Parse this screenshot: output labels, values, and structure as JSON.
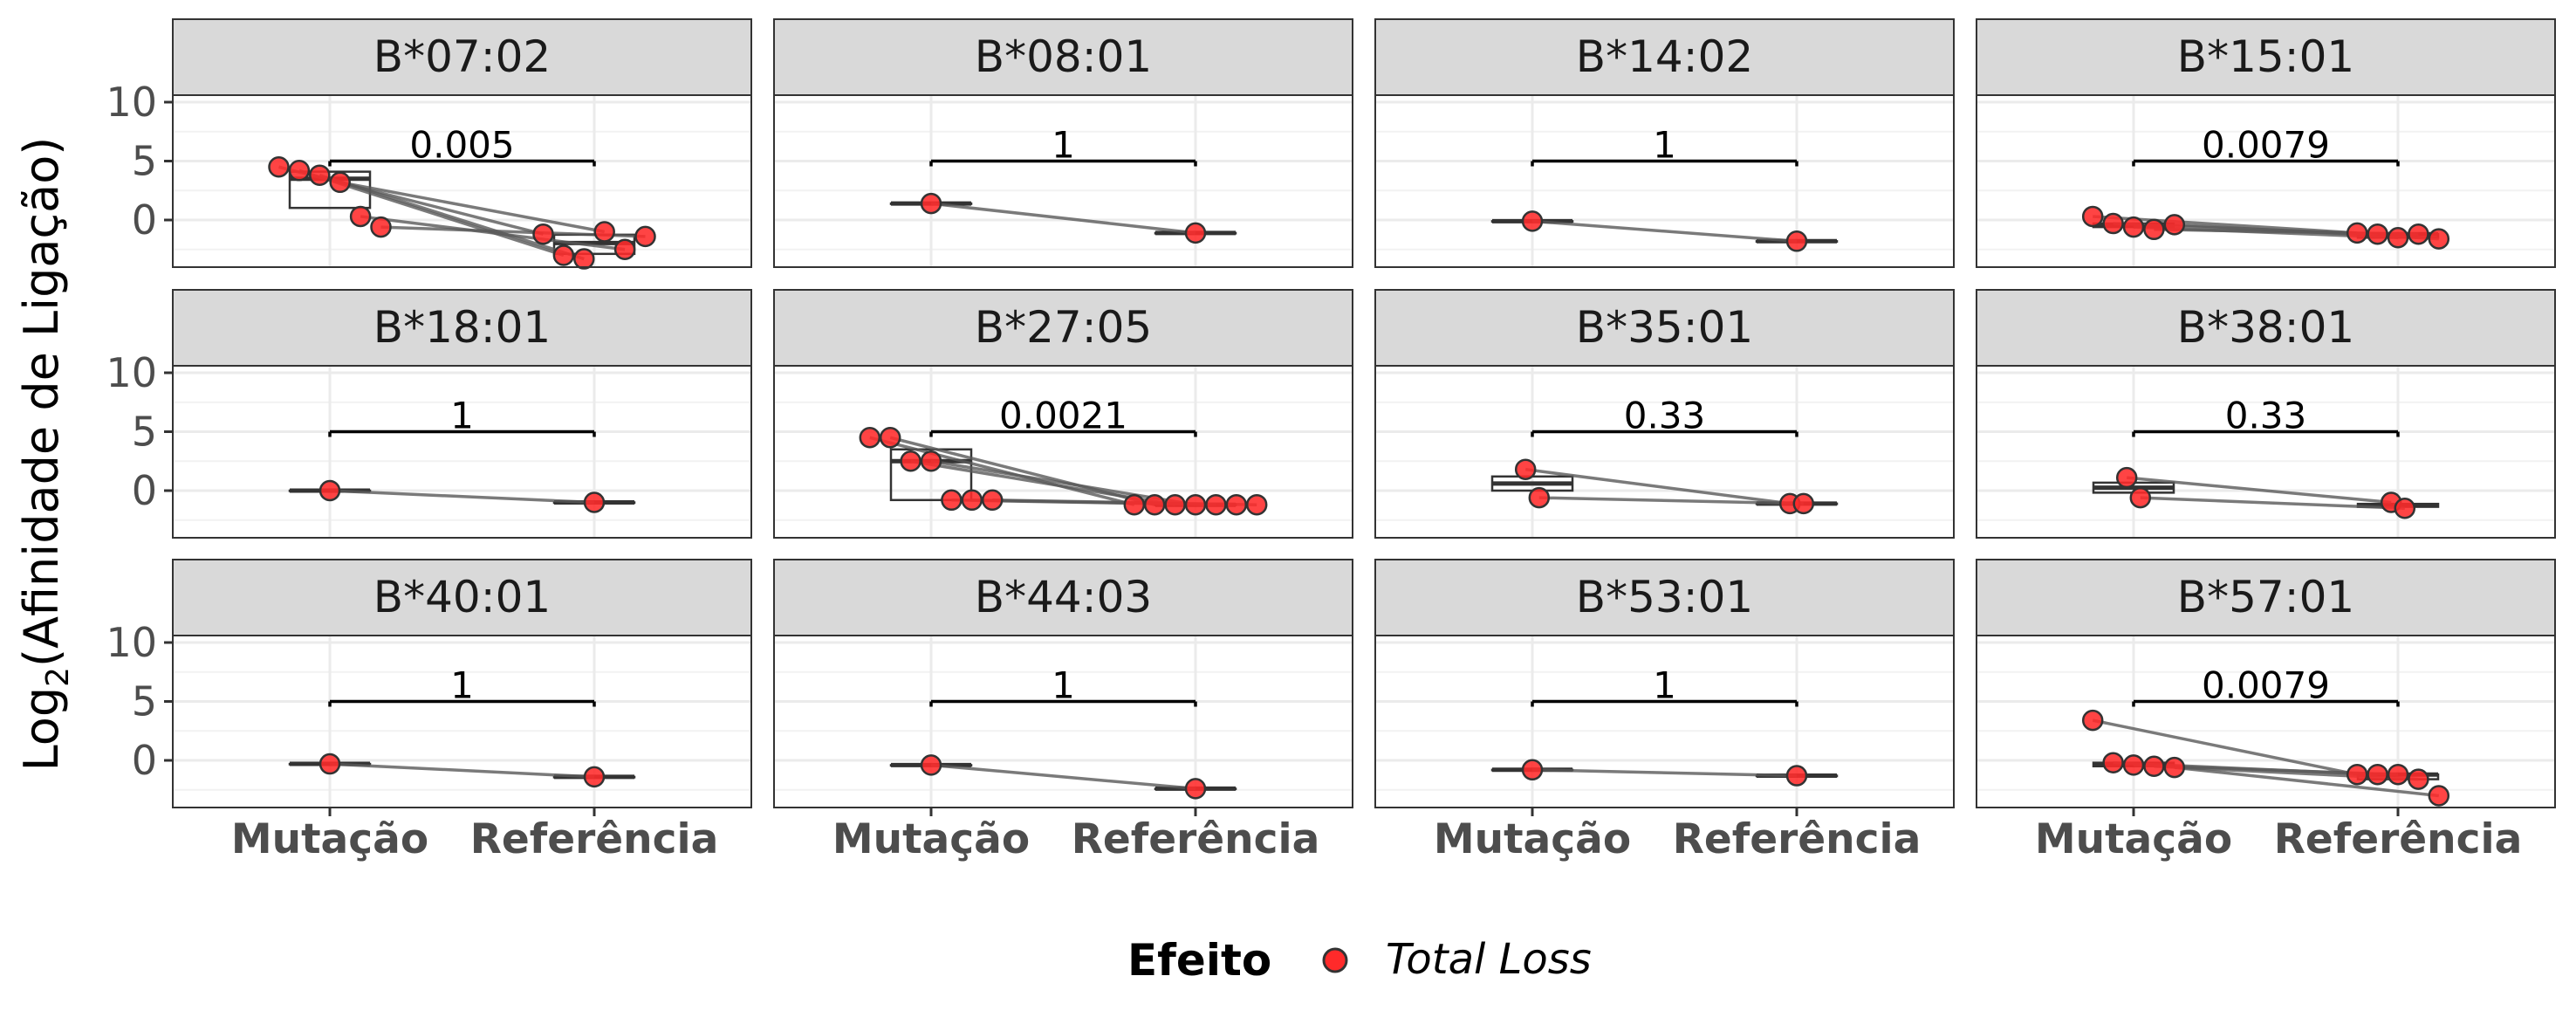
{
  "chart_data": {
    "type": "box-paired-points-facets",
    "ylabel_main": "Log",
    "ylabel_sub": "2",
    "ylabel_rest": "(Afinidade de Ligação)",
    "categories": [
      "Mutação",
      "Referência"
    ],
    "ylim": [
      -4,
      14
    ],
    "yticks": [
      0,
      5,
      10
    ],
    "legend": {
      "title": "Efeito",
      "label": "Total Loss",
      "color": "#ff2020"
    },
    "colors": {
      "point": "#ff2a2a",
      "line": "#595959",
      "strip": "#d9d9d9",
      "bracket": "#000000"
    },
    "grid": true,
    "facets": [
      {
        "name": "B*07:02",
        "p": "0.005",
        "pairs": [
          [
            4.5,
            -1.2
          ],
          [
            4.2,
            -3.0
          ],
          [
            3.8,
            -3.3
          ],
          [
            3.2,
            -1.0
          ],
          [
            0.3,
            -2.5
          ],
          [
            -0.6,
            -1.4
          ]
        ]
      },
      {
        "name": "B*08:01",
        "p": "1",
        "pairs": [
          [
            1.4,
            -1.1
          ]
        ]
      },
      {
        "name": "B*14:02",
        "p": "1",
        "pairs": [
          [
            -0.1,
            -1.8
          ]
        ]
      },
      {
        "name": "B*15:01",
        "p": "0.0079",
        "pairs": [
          [
            0.3,
            -1.1
          ],
          [
            -0.3,
            -1.2
          ],
          [
            -0.6,
            -1.5
          ],
          [
            -0.8,
            -1.2
          ],
          [
            -0.4,
            -1.6
          ]
        ]
      },
      {
        "name": "B*18:01",
        "p": "1",
        "pairs": [
          [
            0.0,
            -1.0
          ]
        ]
      },
      {
        "name": "B*27:05",
        "p": "0.0021",
        "pairs": [
          [
            4.5,
            -1.2
          ],
          [
            4.5,
            -1.2
          ],
          [
            2.5,
            -1.2
          ],
          [
            2.5,
            -1.2
          ],
          [
            -0.8,
            -1.2
          ],
          [
            -0.8,
            -1.2
          ],
          [
            -0.8,
            -1.2
          ]
        ]
      },
      {
        "name": "B*35:01",
        "p": "0.33",
        "pairs": [
          [
            1.8,
            -1.1
          ],
          [
            -0.6,
            -1.1
          ]
        ]
      },
      {
        "name": "B*38:01",
        "p": "0.33",
        "pairs": [
          [
            1.1,
            -1.0
          ],
          [
            -0.6,
            -1.5
          ]
        ]
      },
      {
        "name": "B*40:01",
        "p": "1",
        "pairs": [
          [
            -0.3,
            -1.4
          ]
        ]
      },
      {
        "name": "B*44:03",
        "p": "1",
        "pairs": [
          [
            -0.4,
            -2.4
          ]
        ]
      },
      {
        "name": "B*53:01",
        "p": "1",
        "pairs": [
          [
            -0.8,
            -1.3
          ]
        ]
      },
      {
        "name": "B*57:01",
        "p": "0.0079",
        "pairs": [
          [
            3.4,
            -1.2
          ],
          [
            -0.2,
            -1.2
          ],
          [
            -0.4,
            -1.2
          ],
          [
            -0.5,
            -1.6
          ],
          [
            -0.6,
            -3.0
          ]
        ]
      }
    ]
  }
}
